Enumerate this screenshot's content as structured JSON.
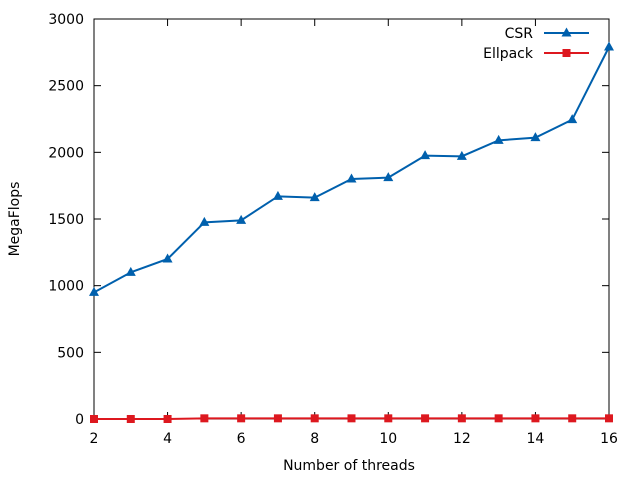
{
  "chart_data": {
    "type": "line",
    "title": "",
    "xlabel": "Number of threads",
    "ylabel": "MegaFlops",
    "xlim": [
      2,
      16
    ],
    "ylim": [
      0,
      3000
    ],
    "x_ticks": [
      2,
      4,
      6,
      8,
      10,
      12,
      14,
      16
    ],
    "y_ticks": [
      0,
      500,
      1000,
      1500,
      2000,
      2500,
      3000
    ],
    "grid": false,
    "legend_position": "top-right",
    "x": [
      2,
      3,
      4,
      5,
      6,
      7,
      8,
      9,
      10,
      11,
      12,
      13,
      14,
      15,
      16
    ],
    "series": [
      {
        "name": "CSR",
        "color": "#0060ad",
        "marker": "triangle",
        "values": [
          950,
          1100,
          1200,
          1475,
          1490,
          1670,
          1660,
          1800,
          1810,
          1975,
          1970,
          2090,
          2110,
          2245,
          2790
        ]
      },
      {
        "name": "Ellpack",
        "color": "#dd181f",
        "marker": "square",
        "values": [
          0,
          0,
          0,
          5,
          5,
          5,
          5,
          5,
          5,
          5,
          5,
          5,
          5,
          5,
          5
        ]
      }
    ]
  }
}
